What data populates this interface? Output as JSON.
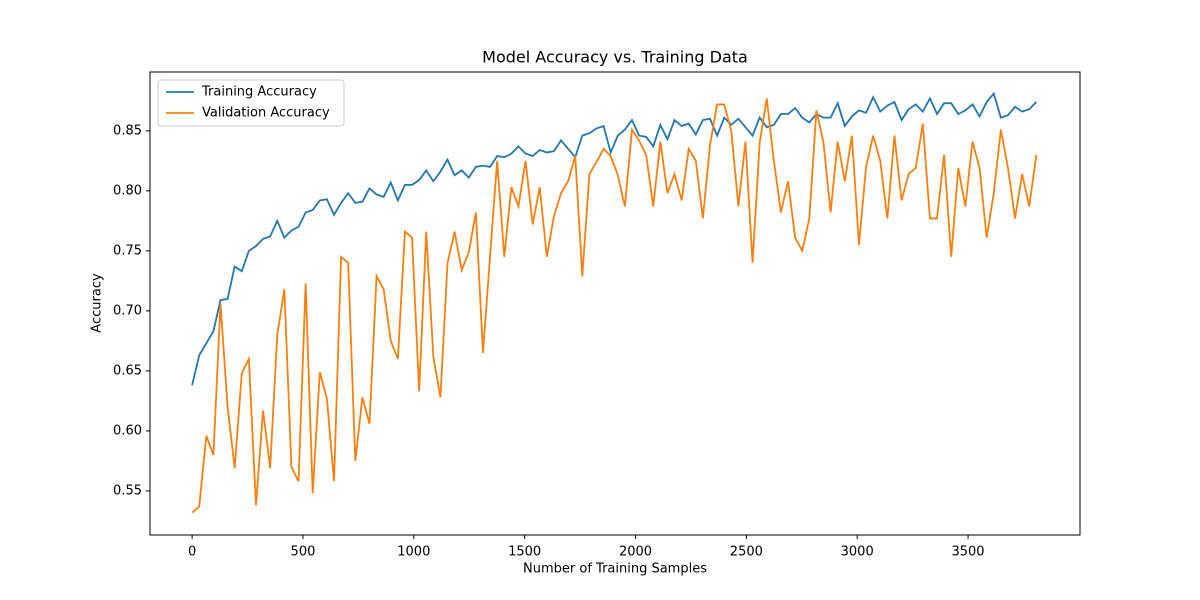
{
  "chart_data": {
    "type": "line",
    "title": "Model Accuracy vs. Training Data",
    "x_label": "Number of Training Samples",
    "y_label": "Accuracy",
    "x": [
      0,
      32,
      64,
      96,
      128,
      160,
      192,
      224,
      256,
      288,
      320,
      352,
      384,
      416,
      448,
      480,
      512,
      544,
      576,
      608,
      640,
      672,
      704,
      736,
      768,
      800,
      832,
      864,
      896,
      928,
      960,
      992,
      1024,
      1056,
      1088,
      1120,
      1152,
      1184,
      1216,
      1248,
      1280,
      1312,
      1344,
      1376,
      1408,
      1440,
      1472,
      1504,
      1536,
      1568,
      1600,
      1632,
      1664,
      1696,
      1728,
      1760,
      1792,
      1824,
      1856,
      1888,
      1920,
      1952,
      1984,
      2016,
      2048,
      2080,
      2112,
      2144,
      2176,
      2208,
      2240,
      2272,
      2304,
      2336,
      2368,
      2400,
      2432,
      2464,
      2496,
      2528,
      2560,
      2592,
      2624,
      2656,
      2688,
      2720,
      2752,
      2784,
      2816,
      2848,
      2880,
      2912,
      2944,
      2976,
      3008,
      3040,
      3072,
      3104,
      3136,
      3168,
      3200,
      3232,
      3264,
      3296,
      3328,
      3360,
      3392,
      3424,
      3456,
      3488,
      3520,
      3552,
      3584,
      3616,
      3648,
      3680,
      3712,
      3744,
      3776,
      3808
    ],
    "series": [
      {
        "name": "Training Accuracy",
        "color": "#1f77b4",
        "values": [
          0.638,
          0.663,
          0.673,
          0.683,
          0.709,
          0.71,
          0.737,
          0.733,
          0.75,
          0.754,
          0.76,
          0.762,
          0.775,
          0.761,
          0.767,
          0.77,
          0.782,
          0.784,
          0.792,
          0.793,
          0.78,
          0.79,
          0.798,
          0.79,
          0.791,
          0.802,
          0.797,
          0.795,
          0.807,
          0.792,
          0.805,
          0.805,
          0.809,
          0.817,
          0.808,
          0.816,
          0.826,
          0.813,
          0.817,
          0.811,
          0.82,
          0.821,
          0.82,
          0.829,
          0.828,
          0.831,
          0.837,
          0.831,
          0.829,
          0.834,
          0.832,
          0.833,
          0.842,
          0.835,
          0.828,
          0.846,
          0.848,
          0.852,
          0.854,
          0.832,
          0.846,
          0.851,
          0.859,
          0.846,
          0.845,
          0.837,
          0.855,
          0.843,
          0.859,
          0.854,
          0.856,
          0.847,
          0.859,
          0.86,
          0.846,
          0.861,
          0.855,
          0.86,
          0.853,
          0.846,
          0.861,
          0.853,
          0.855,
          0.864,
          0.864,
          0.869,
          0.861,
          0.857,
          0.864,
          0.861,
          0.861,
          0.873,
          0.854,
          0.862,
          0.867,
          0.865,
          0.878,
          0.866,
          0.871,
          0.874,
          0.859,
          0.868,
          0.872,
          0.866,
          0.877,
          0.864,
          0.873,
          0.873,
          0.864,
          0.867,
          0.872,
          0.862,
          0.874,
          0.881,
          0.861,
          0.863,
          0.87,
          0.866,
          0.868,
          0.874
        ]
      },
      {
        "name": "Validation Accuracy",
        "color": "#ff7f0e",
        "values": [
          0.532,
          0.537,
          0.596,
          0.58,
          0.706,
          0.62,
          0.569,
          0.648,
          0.66,
          0.538,
          0.617,
          0.569,
          0.68,
          0.718,
          0.57,
          0.558,
          0.723,
          0.548,
          0.649,
          0.627,
          0.558,
          0.745,
          0.74,
          0.575,
          0.628,
          0.606,
          0.729,
          0.718,
          0.675,
          0.66,
          0.766,
          0.761,
          0.633,
          0.766,
          0.662,
          0.628,
          0.74,
          0.766,
          0.734,
          0.749,
          0.782,
          0.665,
          0.746,
          0.825,
          0.745,
          0.803,
          0.787,
          0.825,
          0.772,
          0.803,
          0.745,
          0.779,
          0.798,
          0.808,
          0.829,
          0.729,
          0.814,
          0.824,
          0.835,
          0.829,
          0.813,
          0.787,
          0.851,
          0.842,
          0.83,
          0.787,
          0.841,
          0.798,
          0.814,
          0.792,
          0.835,
          0.825,
          0.777,
          0.838,
          0.872,
          0.872,
          0.85,
          0.787,
          0.841,
          0.74,
          0.84,
          0.877,
          0.825,
          0.782,
          0.808,
          0.761,
          0.75,
          0.777,
          0.867,
          0.84,
          0.782,
          0.841,
          0.808,
          0.846,
          0.755,
          0.82,
          0.846,
          0.825,
          0.777,
          0.846,
          0.792,
          0.814,
          0.819,
          0.856,
          0.777,
          0.777,
          0.83,
          0.745,
          0.819,
          0.787,
          0.841,
          0.819,
          0.761,
          0.798,
          0.851,
          0.819,
          0.777,
          0.814,
          0.787,
          0.83
        ]
      }
    ],
    "xlim": [
      -190,
      4005
    ],
    "xticks": [
      0,
      500,
      1000,
      1500,
      2000,
      2500,
      3000,
      3500
    ],
    "ylim": [
      0.5133,
      0.899
    ],
    "yticks": [
      {
        "value": 0.55,
        "label": "0.55"
      },
      {
        "value": 0.6,
        "label": "0.60"
      },
      {
        "value": 0.65,
        "label": "0.65"
      },
      {
        "value": 0.7,
        "label": "0.70"
      },
      {
        "value": 0.75,
        "label": "0.75"
      },
      {
        "value": 0.8,
        "label": "0.80"
      },
      {
        "value": 0.85,
        "label": "0.85"
      }
    ],
    "legend": "upper left"
  }
}
